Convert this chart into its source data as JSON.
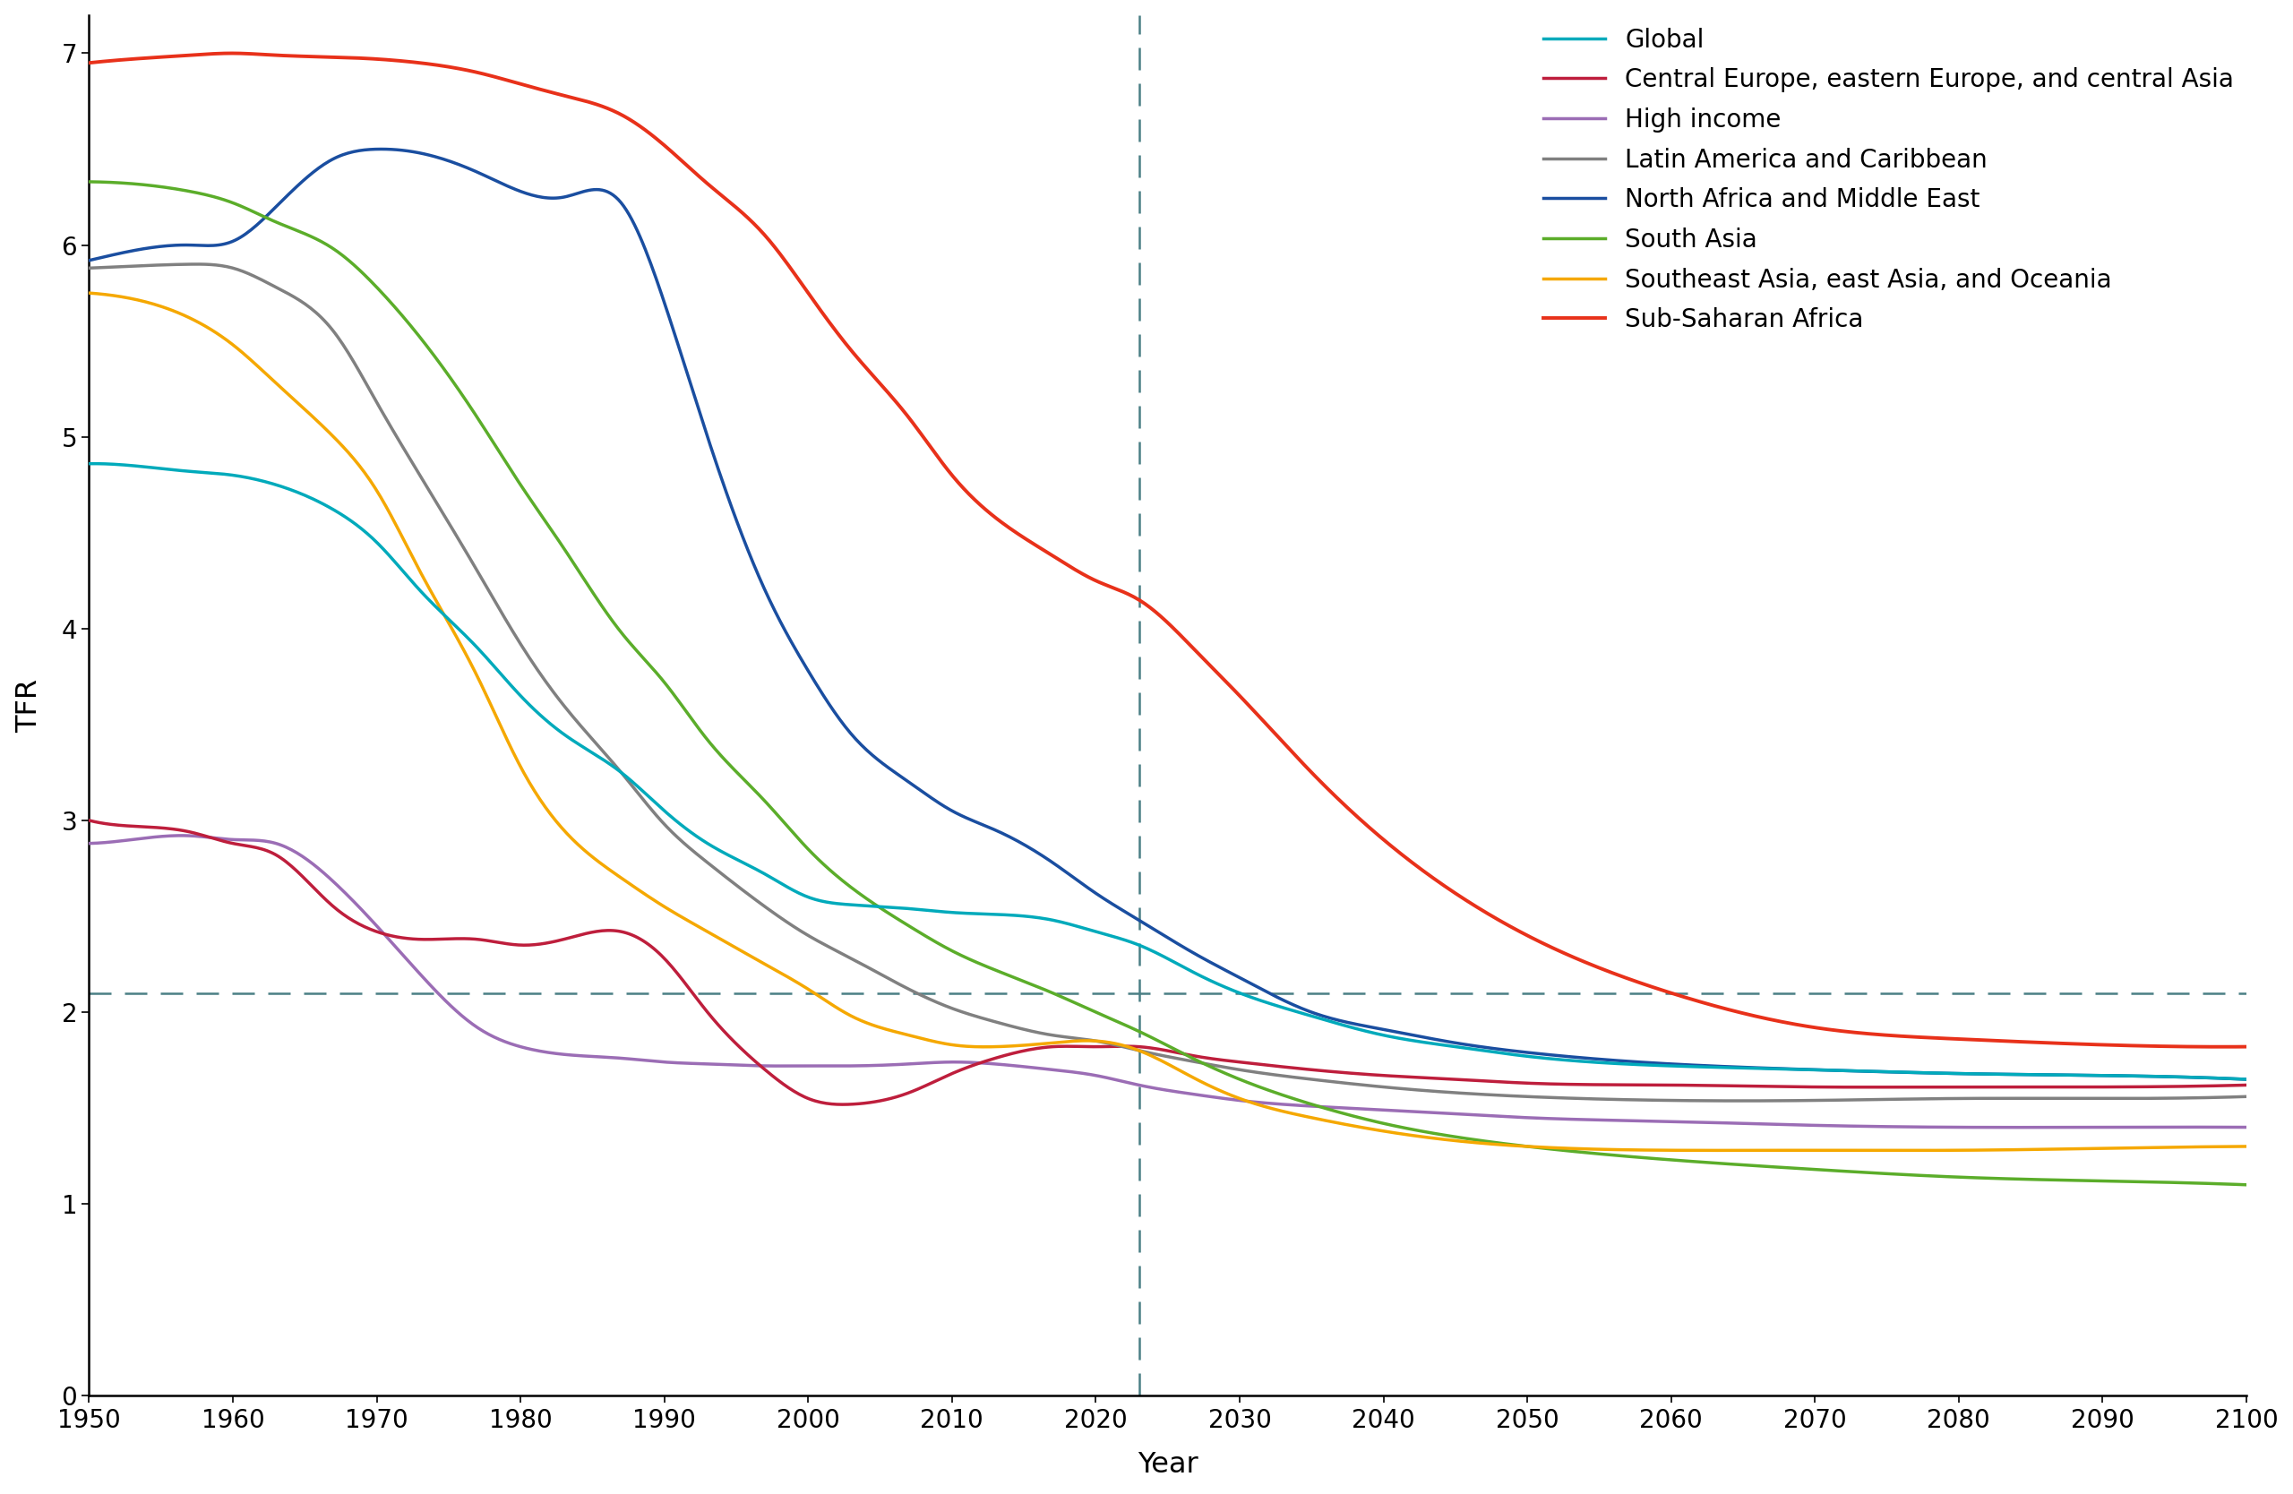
{
  "title": "",
  "xlabel": "Year",
  "ylabel": "TFR",
  "ylim": [
    0,
    7.2
  ],
  "xlim": [
    1950,
    2100
  ],
  "yticks": [
    0,
    1,
    2,
    3,
    4,
    5,
    6,
    7
  ],
  "xticks": [
    1950,
    1960,
    1970,
    1980,
    1990,
    2000,
    2010,
    2020,
    2030,
    2040,
    2050,
    2060,
    2070,
    2080,
    2090,
    2100
  ],
  "vline_x": 2023,
  "hline_y": 2.1,
  "vline_color": "#4a7f85",
  "hline_color": "#4a7f85",
  "background_color": "#ffffff",
  "series": {
    "Global": {
      "color": "#00AABB",
      "linewidth": 2.5,
      "zorder": 5,
      "data": {
        "x": [
          1950,
          1953,
          1957,
          1960,
          1963,
          1967,
          1970,
          1973,
          1977,
          1980,
          1983,
          1987,
          1990,
          1993,
          1997,
          2000,
          2003,
          2007,
          2010,
          2013,
          2017,
          2020,
          2023,
          2027,
          2030,
          2035,
          2040,
          2045,
          2050,
          2060,
          2070,
          2080,
          2090,
          2100
        ],
        "y": [
          4.86,
          4.85,
          4.82,
          4.8,
          4.75,
          4.62,
          4.45,
          4.2,
          3.9,
          3.65,
          3.45,
          3.25,
          3.05,
          2.88,
          2.72,
          2.6,
          2.56,
          2.54,
          2.52,
          2.51,
          2.48,
          2.42,
          2.35,
          2.2,
          2.1,
          1.98,
          1.88,
          1.82,
          1.77,
          1.72,
          1.7,
          1.68,
          1.67,
          1.65
        ]
      }
    },
    "Central Europe, eastern Europe, and central Asia": {
      "color": "#BE1E3C",
      "linewidth": 2.5,
      "zorder": 4,
      "data": {
        "x": [
          1950,
          1953,
          1957,
          1960,
          1963,
          1967,
          1970,
          1973,
          1977,
          1980,
          1983,
          1987,
          1990,
          1993,
          1997,
          2000,
          2003,
          2007,
          2010,
          2013,
          2017,
          2020,
          2023,
          2027,
          2030,
          2035,
          2040,
          2045,
          2050,
          2060,
          2070,
          2080,
          2090,
          2100
        ],
        "y": [
          3.0,
          2.97,
          2.94,
          2.88,
          2.82,
          2.55,
          2.42,
          2.38,
          2.38,
          2.35,
          2.38,
          2.42,
          2.28,
          2.0,
          1.7,
          1.55,
          1.52,
          1.58,
          1.68,
          1.76,
          1.82,
          1.82,
          1.82,
          1.77,
          1.74,
          1.7,
          1.67,
          1.65,
          1.63,
          1.62,
          1.61,
          1.61,
          1.61,
          1.62
        ]
      }
    },
    "High income": {
      "color": "#9B6DB5",
      "linewidth": 2.5,
      "zorder": 3,
      "data": {
        "x": [
          1950,
          1953,
          1957,
          1960,
          1963,
          1967,
          1970,
          1973,
          1977,
          1980,
          1983,
          1987,
          1990,
          1993,
          1997,
          2000,
          2003,
          2007,
          2010,
          2013,
          2017,
          2020,
          2023,
          2027,
          2030,
          2035,
          2040,
          2045,
          2050,
          2060,
          2070,
          2080,
          2090,
          2100
        ],
        "y": [
          2.88,
          2.9,
          2.92,
          2.9,
          2.88,
          2.68,
          2.45,
          2.2,
          1.92,
          1.82,
          1.78,
          1.76,
          1.74,
          1.73,
          1.72,
          1.72,
          1.72,
          1.73,
          1.74,
          1.73,
          1.7,
          1.67,
          1.62,
          1.57,
          1.54,
          1.51,
          1.49,
          1.47,
          1.45,
          1.43,
          1.41,
          1.4,
          1.4,
          1.4
        ]
      }
    },
    "Latin America and Caribbean": {
      "color": "#808080",
      "linewidth": 2.5,
      "zorder": 4,
      "data": {
        "x": [
          1950,
          1953,
          1957,
          1960,
          1963,
          1967,
          1970,
          1973,
          1977,
          1980,
          1983,
          1987,
          1990,
          1993,
          1997,
          2000,
          2003,
          2007,
          2010,
          2013,
          2017,
          2020,
          2023,
          2027,
          2030,
          2035,
          2040,
          2045,
          2050,
          2060,
          2070,
          2080,
          2090,
          2100
        ],
        "y": [
          5.88,
          5.89,
          5.9,
          5.88,
          5.78,
          5.55,
          5.18,
          4.8,
          4.3,
          3.92,
          3.6,
          3.25,
          2.98,
          2.78,
          2.55,
          2.4,
          2.28,
          2.12,
          2.02,
          1.95,
          1.88,
          1.85,
          1.8,
          1.74,
          1.7,
          1.65,
          1.61,
          1.58,
          1.56,
          1.54,
          1.54,
          1.55,
          1.55,
          1.56
        ]
      }
    },
    "North Africa and Middle East": {
      "color": "#1A4EA0",
      "linewidth": 2.5,
      "zorder": 4,
      "data": {
        "x": [
          1950,
          1953,
          1957,
          1960,
          1963,
          1967,
          1970,
          1973,
          1977,
          1980,
          1983,
          1987,
          1990,
          1993,
          1997,
          2000,
          2003,
          2007,
          2010,
          2013,
          2017,
          2020,
          2023,
          2027,
          2030,
          2035,
          2040,
          2045,
          2050,
          2060,
          2070,
          2080,
          2090,
          2100
        ],
        "y": [
          5.92,
          5.97,
          6.0,
          6.02,
          6.2,
          6.45,
          6.5,
          6.48,
          6.38,
          6.28,
          6.25,
          6.22,
          5.7,
          5.0,
          4.2,
          3.78,
          3.45,
          3.2,
          3.05,
          2.95,
          2.78,
          2.62,
          2.48,
          2.3,
          2.18,
          2.0,
          1.91,
          1.84,
          1.79,
          1.73,
          1.7,
          1.68,
          1.67,
          1.65
        ]
      }
    },
    "South Asia": {
      "color": "#5BAD2A",
      "linewidth": 2.5,
      "zorder": 4,
      "data": {
        "x": [
          1950,
          1953,
          1957,
          1960,
          1963,
          1967,
          1970,
          1973,
          1977,
          1980,
          1983,
          1987,
          1990,
          1993,
          1997,
          2000,
          2003,
          2007,
          2010,
          2013,
          2017,
          2020,
          2023,
          2027,
          2030,
          2035,
          2040,
          2045,
          2050,
          2060,
          2070,
          2080,
          2090,
          2100
        ],
        "y": [
          6.33,
          6.32,
          6.28,
          6.22,
          6.12,
          5.98,
          5.78,
          5.52,
          5.1,
          4.75,
          4.42,
          3.98,
          3.72,
          3.42,
          3.1,
          2.85,
          2.65,
          2.45,
          2.32,
          2.22,
          2.1,
          2.0,
          1.9,
          1.75,
          1.65,
          1.52,
          1.42,
          1.35,
          1.3,
          1.23,
          1.18,
          1.14,
          1.12,
          1.1
        ]
      }
    },
    "Southeast Asia, east Asia, and Oceania": {
      "color": "#F5A800",
      "linewidth": 2.5,
      "zorder": 4,
      "data": {
        "x": [
          1950,
          1953,
          1957,
          1960,
          1963,
          1967,
          1970,
          1973,
          1977,
          1980,
          1983,
          1987,
          1990,
          1993,
          1997,
          2000,
          2003,
          2007,
          2010,
          2013,
          2017,
          2020,
          2023,
          2027,
          2030,
          2035,
          2040,
          2045,
          2050,
          2060,
          2070,
          2080,
          2090,
          2100
        ],
        "y": [
          5.75,
          5.72,
          5.62,
          5.48,
          5.28,
          5.0,
          4.72,
          4.3,
          3.75,
          3.28,
          2.95,
          2.7,
          2.55,
          2.42,
          2.25,
          2.12,
          1.98,
          1.88,
          1.83,
          1.82,
          1.84,
          1.85,
          1.8,
          1.65,
          1.55,
          1.45,
          1.38,
          1.33,
          1.3,
          1.28,
          1.28,
          1.28,
          1.29,
          1.3
        ]
      }
    },
    "Sub-Saharan Africa": {
      "color": "#E8311A",
      "linewidth": 2.8,
      "zorder": 6,
      "data": {
        "x": [
          1950,
          1953,
          1957,
          1960,
          1963,
          1967,
          1970,
          1973,
          1977,
          1980,
          1983,
          1987,
          1990,
          1993,
          1997,
          2000,
          2003,
          2007,
          2010,
          2013,
          2017,
          2020,
          2023,
          2027,
          2030,
          2035,
          2040,
          2045,
          2050,
          2060,
          2070,
          2080,
          2090,
          2100
        ],
        "y": [
          6.95,
          6.97,
          6.99,
          7.0,
          6.99,
          6.98,
          6.97,
          6.95,
          6.9,
          6.84,
          6.78,
          6.68,
          6.52,
          6.32,
          6.05,
          5.75,
          5.45,
          5.1,
          4.8,
          4.58,
          4.38,
          4.25,
          4.15,
          3.88,
          3.65,
          3.25,
          2.9,
          2.62,
          2.4,
          2.1,
          1.92,
          1.86,
          1.83,
          1.82
        ]
      }
    }
  },
  "legend_fontsize": 20,
  "axis_label_fontsize": 23,
  "tick_label_fontsize": 20
}
